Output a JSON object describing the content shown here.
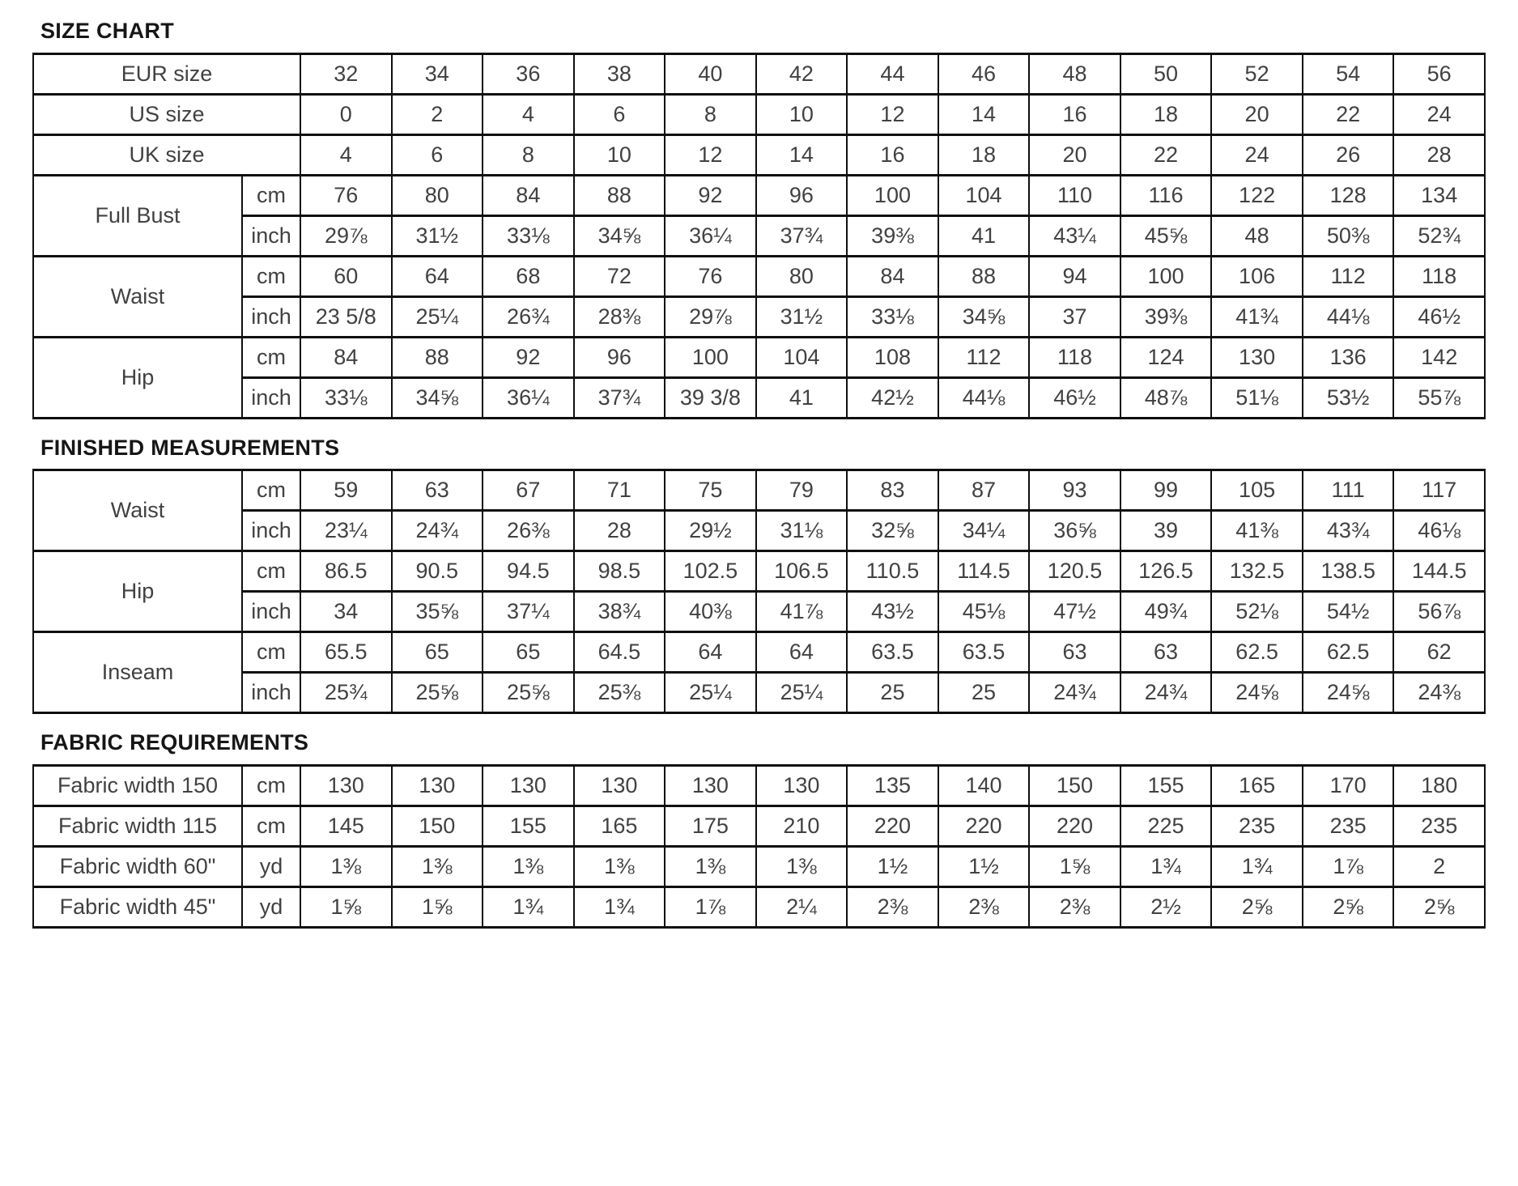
{
  "page": {
    "background": "#ffffff",
    "border_color": "#0f0f0f",
    "title_color": "#161616",
    "cell_text_color": "#414141"
  },
  "sections": [
    {
      "id": "size-chart",
      "title": "SIZE CHART",
      "rows": [
        {
          "label": "EUR size",
          "values": [
            "32",
            "34",
            "36",
            "38",
            "40",
            "42",
            "44",
            "46",
            "48",
            "50",
            "52",
            "54",
            "56"
          ]
        },
        {
          "label": "US size",
          "values": [
            "0",
            "2",
            "4",
            "6",
            "8",
            "10",
            "12",
            "14",
            "16",
            "18",
            "20",
            "22",
            "24"
          ]
        },
        {
          "label": "UK size",
          "values": [
            "4",
            "6",
            "8",
            "10",
            "12",
            "14",
            "16",
            "18",
            "20",
            "22",
            "24",
            "26",
            "28"
          ]
        },
        {
          "label": "Full Bust",
          "subrows": [
            {
              "unit": "cm",
              "values": [
                "76",
                "80",
                "84",
                "88",
                "92",
                "96",
                "100",
                "104",
                "110",
                "116",
                "122",
                "128",
                "134"
              ]
            },
            {
              "unit": "inch",
              "values": [
                "29⅞",
                "31½",
                "33⅛",
                "34⅝",
                "36¼",
                "37¾",
                "39⅜",
                "41",
                "43¼",
                "45⅝",
                "48",
                "50⅜",
                "52¾"
              ]
            }
          ]
        },
        {
          "label": "Waist",
          "subrows": [
            {
              "unit": "cm",
              "values": [
                "60",
                "64",
                "68",
                "72",
                "76",
                "80",
                "84",
                "88",
                "94",
                "100",
                "106",
                "112",
                "118"
              ]
            },
            {
              "unit": "inch",
              "values": [
                "23 5/8",
                "25¼",
                "26¾",
                "28⅜",
                "29⅞",
                "31½",
                "33⅛",
                "34⅝",
                "37",
                "39⅜",
                "41¾",
                "44⅛",
                "46½"
              ]
            }
          ]
        },
        {
          "label": "Hip",
          "subrows": [
            {
              "unit": "cm",
              "values": [
                "84",
                "88",
                "92",
                "96",
                "100",
                "104",
                "108",
                "112",
                "118",
                "124",
                "130",
                "136",
                "142"
              ]
            },
            {
              "unit": "inch",
              "values": [
                "33⅛",
                "34⅝",
                "36¼",
                "37¾",
                "39 3/8",
                "41",
                "42½",
                "44⅛",
                "46½",
                "48⅞",
                "51⅛",
                "53½",
                "55⅞"
              ]
            }
          ]
        }
      ]
    },
    {
      "id": "finished-measurements",
      "title": "FINISHED MEASUREMENTS",
      "rows": [
        {
          "label": "Waist",
          "subrows": [
            {
              "unit": "cm",
              "values": [
                "59",
                "63",
                "67",
                "71",
                "75",
                "79",
                "83",
                "87",
                "93",
                "99",
                "105",
                "111",
                "117"
              ]
            },
            {
              "unit": "inch",
              "values": [
                "23¼",
                "24¾",
                "26⅜",
                "28",
                "29½",
                "31⅛",
                "32⅝",
                "34¼",
                "36⅝",
                "39",
                "41⅜",
                "43¾",
                "46⅛"
              ]
            }
          ]
        },
        {
          "label": "Hip",
          "subrows": [
            {
              "unit": "cm",
              "values": [
                "86.5",
                "90.5",
                "94.5",
                "98.5",
                "102.5",
                "106.5",
                "110.5",
                "114.5",
                "120.5",
                "126.5",
                "132.5",
                "138.5",
                "144.5"
              ]
            },
            {
              "unit": "inch",
              "values": [
                "34",
                "35⅝",
                "37¼",
                "38¾",
                "40⅜",
                "41⅞",
                "43½",
                "45⅛",
                "47½",
                "49¾",
                "52⅛",
                "54½",
                "56⅞"
              ]
            }
          ]
        },
        {
          "label": "Inseam",
          "subrows": [
            {
              "unit": "cm",
              "values": [
                "65.5",
                "65",
                "65",
                "64.5",
                "64",
                "64",
                "63.5",
                "63.5",
                "63",
                "63",
                "62.5",
                "62.5",
                "62"
              ]
            },
            {
              "unit": "inch",
              "values": [
                "25¾",
                "25⅝",
                "25⅝",
                "25⅜",
                "25¼",
                "25¼",
                "25",
                "25",
                "24¾",
                "24¾",
                "24⅝",
                "24⅝",
                "24⅜"
              ]
            }
          ]
        }
      ]
    },
    {
      "id": "fabric-requirements",
      "title": "FABRIC REQUIREMENTS",
      "rows": [
        {
          "label": "Fabric width 150",
          "unit": "cm",
          "values": [
            "130",
            "130",
            "130",
            "130",
            "130",
            "130",
            "135",
            "140",
            "150",
            "155",
            "165",
            "170",
            "180"
          ]
        },
        {
          "label": "Fabric width 115",
          "unit": "cm",
          "values": [
            "145",
            "150",
            "155",
            "165",
            "175",
            "210",
            "220",
            "220",
            "220",
            "225",
            "235",
            "235",
            "235"
          ]
        },
        {
          "label": "Fabric width 60\"",
          "unit": "yd",
          "values": [
            "1⅜",
            "1⅜",
            "1⅜",
            "1⅜",
            "1⅜",
            "1⅜",
            "1½",
            "1½",
            "1⅝",
            "1¾",
            "1¾",
            "1⅞",
            "2"
          ]
        },
        {
          "label": "Fabric width 45\"",
          "unit": "yd",
          "values": [
            "1⅝",
            "1⅝",
            "1¾",
            "1¾",
            "1⅞",
            "2¼",
            "2⅜",
            "2⅜",
            "2⅜",
            "2½",
            "2⅝",
            "2⅝",
            "2⅝"
          ]
        }
      ]
    }
  ]
}
